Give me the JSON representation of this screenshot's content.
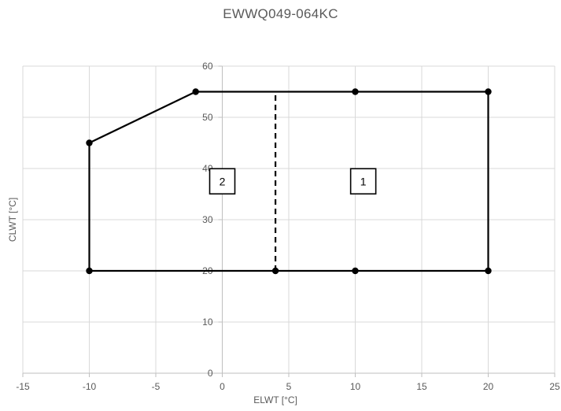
{
  "chart_data": {
    "type": "line",
    "title": "EWWQ049-064KC",
    "xlabel": "ELWT [°C]",
    "ylabel": "CLWT [°C]",
    "xlim": [
      -15,
      25
    ],
    "ylim": [
      0,
      60
    ],
    "x_ticks": [
      -15,
      -10,
      -5,
      0,
      5,
      10,
      15,
      20,
      25
    ],
    "y_ticks": [
      0,
      10,
      20,
      30,
      40,
      50,
      60
    ],
    "grid": true,
    "legend": "none",
    "series": [
      {
        "style": "solid",
        "color": "#000000",
        "points": [
          [
            -10,
            20
          ],
          [
            -10,
            45
          ],
          [
            -2,
            55
          ],
          [
            10,
            55
          ],
          [
            20,
            55
          ],
          [
            20,
            20
          ],
          [
            10,
            20
          ],
          [
            4,
            20
          ],
          [
            -10,
            20
          ]
        ],
        "markers": [
          [
            -10,
            20
          ],
          [
            -10,
            45
          ],
          [
            -2,
            55
          ],
          [
            10,
            55
          ],
          [
            20,
            55
          ],
          [
            20,
            20
          ],
          [
            10,
            20
          ],
          [
            4,
            20
          ]
        ]
      },
      {
        "style": "dashed",
        "color": "#000000",
        "points": [
          [
            4,
            20
          ],
          [
            4,
            55
          ]
        ],
        "markers": []
      }
    ],
    "annotations": [
      {
        "text": "2",
        "x": 0,
        "y": 37.5
      },
      {
        "text": "1",
        "x": 10.6,
        "y": 37.5
      }
    ]
  }
}
